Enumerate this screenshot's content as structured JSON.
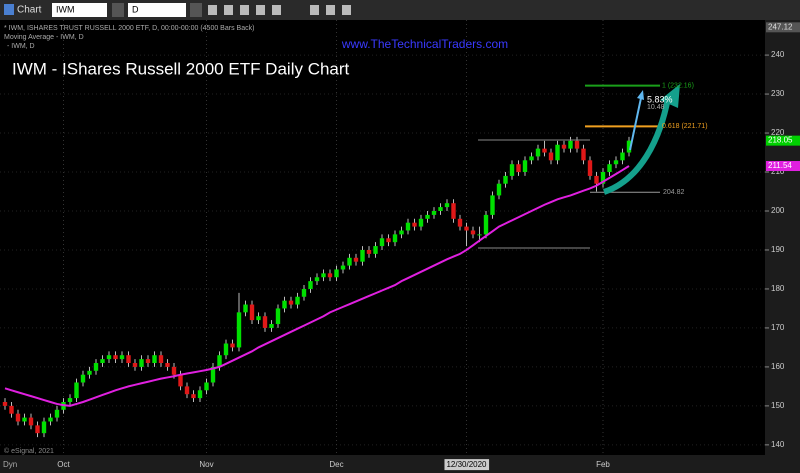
{
  "ui": {
    "window_title": "Chart",
    "symbol": "IWM",
    "interval": "D"
  },
  "chart_data": {
    "type": "candlestick",
    "title": "IWM - IShares Russell 2000 ETF Daily Chart",
    "header_lines": [
      "* IWM, ISHARES TRUST RUSSELL 2000 ETF, D, 00:00-00:00 (4500 Bars Back)",
      "Moving Average - IWM, D",
      "- IWM, D"
    ],
    "watermark": "www.TheTechnicalTraders.com",
    "footer": "© eSignal, 2021",
    "footer_mode": "Dyn",
    "categories": [
      null,
      null,
      null,
      null,
      null,
      null,
      null,
      null,
      null,
      "Oct",
      null,
      null,
      null,
      null,
      null,
      null,
      null,
      null,
      null,
      null,
      null,
      null,
      null,
      null,
      null,
      null,
      null,
      null,
      null,
      null,
      null,
      "Nov",
      null,
      null,
      null,
      null,
      null,
      null,
      null,
      null,
      null,
      null,
      null,
      null,
      null,
      null,
      null,
      null,
      null,
      null,
      null,
      "Dec",
      null,
      null,
      null,
      null,
      null,
      null,
      null,
      null,
      null,
      null,
      null,
      null,
      null,
      null,
      null,
      null,
      null,
      null,
      null,
      "12/30/2020",
      null,
      null,
      null,
      null,
      null,
      null,
      null,
      null,
      null,
      null,
      null,
      null,
      null,
      null,
      null,
      null,
      null,
      null,
      null,
      null,
      "Feb",
      null,
      null,
      null,
      null
    ],
    "open": [
      151,
      150,
      148,
      146,
      147,
      145,
      143,
      146,
      147,
      149,
      151,
      152,
      156,
      158,
      159,
      161,
      162,
      163,
      162,
      163,
      161,
      160,
      162,
      161,
      163,
      161,
      160,
      158,
      155,
      153,
      152,
      154,
      156,
      160,
      163,
      166,
      165,
      174,
      176,
      172,
      173,
      170,
      171,
      175,
      177,
      176,
      178,
      180,
      182,
      183,
      184,
      183,
      185,
      186,
      188,
      187,
      190,
      189,
      191,
      193,
      192,
      194,
      195,
      197,
      196,
      198,
      199,
      200,
      201,
      202,
      198,
      196,
      195,
      194,
      194,
      199,
      204,
      207,
      209,
      212,
      210,
      213,
      214,
      216,
      215,
      213,
      217,
      216,
      218,
      216,
      213,
      209,
      207,
      210,
      212,
      213,
      215
    ],
    "high": [
      152,
      151,
      149,
      148,
      148,
      146,
      147,
      148,
      150,
      152,
      153,
      157,
      159,
      160,
      162,
      163,
      164,
      164,
      164,
      164,
      162,
      163,
      163,
      164,
      164,
      162,
      161,
      159,
      156,
      154,
      155,
      157,
      161,
      164,
      167,
      167,
      179,
      177,
      177,
      174,
      174,
      172,
      176,
      178,
      178,
      179,
      181,
      183,
      184,
      185,
      185,
      186,
      187,
      189,
      189,
      191,
      191,
      192,
      194,
      194,
      195,
      196,
      198,
      198,
      199,
      200,
      201,
      202,
      203,
      203,
      199,
      197,
      196,
      196,
      200,
      205,
      208,
      210,
      213,
      213,
      214,
      215,
      217,
      218,
      216,
      218,
      218,
      219,
      219,
      217,
      214,
      210,
      211,
      213,
      214,
      216,
      219
    ],
    "low": [
      149,
      147,
      145,
      145,
      144,
      142,
      142,
      145,
      146,
      148,
      150,
      151,
      155,
      157,
      158,
      160,
      161,
      161,
      161,
      160,
      159,
      159,
      160,
      160,
      160,
      159,
      157,
      154,
      152,
      151,
      151,
      153,
      155,
      159,
      162,
      164,
      164,
      173,
      171,
      171,
      169,
      169,
      170,
      174,
      175,
      175,
      177,
      179,
      181,
      182,
      182,
      182,
      184,
      185,
      186,
      186,
      188,
      188,
      190,
      191,
      191,
      193,
      194,
      195,
      195,
      197,
      198,
      199,
      200,
      197,
      195,
      191,
      193,
      192,
      193,
      198,
      203,
      206,
      208,
      209,
      209,
      212,
      213,
      214,
      212,
      212,
      215,
      215,
      215,
      212,
      208,
      205,
      206,
      209,
      211,
      212,
      214
    ],
    "close": [
      150,
      148,
      146,
      147,
      145,
      143,
      146,
      147,
      149,
      151,
      152,
      156,
      158,
      159,
      161,
      162,
      163,
      162,
      163,
      161,
      160,
      162,
      161,
      163,
      161,
      160,
      158,
      155,
      153,
      152,
      154,
      156,
      160,
      163,
      166,
      165,
      174,
      176,
      172,
      173,
      170,
      171,
      175,
      177,
      176,
      178,
      180,
      182,
      183,
      184,
      183,
      185,
      186,
      188,
      187,
      190,
      189,
      191,
      193,
      192,
      194,
      195,
      197,
      196,
      198,
      199,
      200,
      201,
      202,
      198,
      196,
      195,
      194,
      194,
      199,
      204,
      207,
      209,
      212,
      210,
      213,
      214,
      216,
      215,
      213,
      217,
      216,
      218,
      216,
      213,
      209,
      207,
      210,
      212,
      213,
      215,
      218.05
    ],
    "up_color": "#00e000",
    "down_color": "#e01818",
    "moving_average": {
      "color": "#e020e0",
      "values": [
        154.5,
        154,
        153.5,
        153,
        152.5,
        152,
        151.5,
        151,
        150.5,
        150.2,
        150,
        150.5,
        151,
        151.6,
        152.2,
        152.8,
        153.4,
        154,
        154.5,
        155,
        155.4,
        155.8,
        156.2,
        156.6,
        157,
        157.3,
        157.6,
        158,
        158.3,
        158.6,
        158.9,
        159.2,
        159.6,
        160,
        160.8,
        161.6,
        162.4,
        163.2,
        164,
        165,
        165.8,
        166.6,
        167.4,
        168.2,
        169,
        169.8,
        170.6,
        171.4,
        172.2,
        173,
        174,
        174.7,
        175.4,
        176.1,
        176.8,
        177.5,
        178.2,
        178.9,
        179.6,
        180.3,
        181,
        182,
        182.8,
        183.6,
        184.4,
        185.2,
        186,
        186.8,
        187.6,
        188.3,
        189,
        190,
        191.2,
        192.4,
        193.6,
        194.8,
        196,
        196.8,
        197.6,
        198.4,
        199.2,
        200,
        200.8,
        201.6,
        202.3,
        203,
        203.5,
        204,
        204.6,
        205.2,
        205.8,
        206.5,
        207.5,
        208.5,
        209.5,
        210.5,
        211.54
      ]
    },
    "ylim": [
      137.4,
      249
    ],
    "yticks": [
      140,
      150,
      160,
      170,
      180,
      190,
      200,
      210,
      220,
      230,
      240
    ],
    "grid": true,
    "price_labels": [
      {
        "value": 247.12,
        "label": "247.12",
        "color": "#555555"
      },
      {
        "value": 218.05,
        "label": "218.05",
        "color": "#00d000"
      },
      {
        "value": 211.54,
        "label": "211.54",
        "color": "#e020e0"
      }
    ],
    "levels": [
      {
        "value": 232.16,
        "label": "1 (232.16)",
        "color": "#1aa01a"
      },
      {
        "value": 221.71,
        "label": "0.618 (221.71)",
        "color": "#f0a020"
      },
      {
        "value": 204.82,
        "label": "204.82",
        "color": "#9a9a9a"
      }
    ],
    "range_lines": [
      218.2,
      190.5
    ],
    "notes": [
      {
        "value": 228.4,
        "label": "5.83%"
      },
      {
        "value": 226.6,
        "label": "10.48"
      }
    ]
  }
}
